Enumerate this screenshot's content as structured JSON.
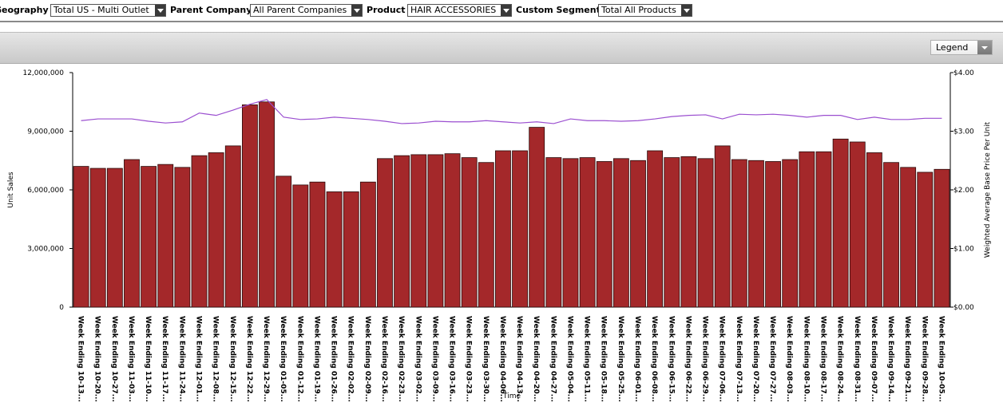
{
  "filters": [
    {
      "label": "Geography",
      "value": "Total US - Multi Outlet"
    },
    {
      "label": "Parent Company",
      "value": "All Parent Companies"
    },
    {
      "label": "Product",
      "value": "HAIR ACCESSORIES"
    },
    {
      "label": "Custom Segment",
      "value": "Total All Products"
    }
  ],
  "legend_button": "Legend",
  "chart_data": {
    "type": "bar_line",
    "ylabel": "Unit Sales",
    "y2label": "Weighted Average Base Price Per Unit",
    "xlabel": "Time",
    "categories": [
      "Week Ending 10-13...",
      "Week Ending 10-20...",
      "Week Ending 10-27...",
      "Week Ending 11-03...",
      "Week Ending 11-10...",
      "Week Ending 11-17...",
      "Week Ending 11-24...",
      "Week Ending 12-01...",
      "Week Ending 12-08...",
      "Week Ending 12-15...",
      "Week Ending 12-22...",
      "Week Ending 12-29...",
      "Week Ending 01-05...",
      "Week Ending 01-12...",
      "Week Ending 01-19...",
      "Week Ending 01-26...",
      "Week Ending 02-02...",
      "Week Ending 02-09...",
      "Week Ending 02-16...",
      "Week Ending 02-23...",
      "Week Ending 03-02...",
      "Week Ending 03-09...",
      "Week Ending 03-16...",
      "Week Ending 03-23...",
      "Week Ending 03-30...",
      "Week Ending 04-06...",
      "Week Ending 04-13...",
      "Week Ending 04-20...",
      "Week Ending 04-27...",
      "Week Ending 05-04...",
      "Week Ending 05-11...",
      "Week Ending 05-18...",
      "Week Ending 05-25...",
      "Week Ending 06-01...",
      "Week Ending 06-08...",
      "Week Ending 06-15...",
      "Week Ending 06-22...",
      "Week Ending 06-29...",
      "Week Ending 07-06...",
      "Week Ending 07-13...",
      "Week Ending 07-20...",
      "Week Ending 07-27...",
      "Week Ending 08-03...",
      "Week Ending 08-10...",
      "Week Ending 08-17...",
      "Week Ending 08-24...",
      "Week Ending 08-31...",
      "Week Ending 09-07...",
      "Week Ending 09-14...",
      "Week Ending 09-21...",
      "Week Ending 09-28...",
      "Week Ending 10-05..."
    ],
    "series": [
      {
        "type": "bar",
        "axis": "y",
        "color": "#a4282a",
        "values": [
          7200000,
          7100000,
          7100000,
          7550000,
          7200000,
          7300000,
          7150000,
          7750000,
          7900000,
          8250000,
          10350000,
          10500000,
          6700000,
          6250000,
          6400000,
          5900000,
          5900000,
          6400000,
          7600000,
          7750000,
          7800000,
          7800000,
          7850000,
          7650000,
          7400000,
          8000000,
          8000000,
          9200000,
          7650000,
          7600000,
          7650000,
          7450000,
          7600000,
          7500000,
          8000000,
          7650000,
          7700000,
          7600000,
          8250000,
          7550000,
          7500000,
          7450000,
          7550000,
          7950000,
          7950000,
          8600000,
          8450000,
          7900000,
          7400000,
          7150000,
          6900000,
          7050000
        ]
      },
      {
        "type": "line",
        "axis": "y2",
        "color": "#9b4fd0",
        "values": [
          3.18,
          3.21,
          3.21,
          3.21,
          3.17,
          3.14,
          3.16,
          3.31,
          3.27,
          3.36,
          3.46,
          3.54,
          3.24,
          3.2,
          3.21,
          3.24,
          3.22,
          3.2,
          3.17,
          3.13,
          3.14,
          3.17,
          3.16,
          3.16,
          3.18,
          3.16,
          3.14,
          3.16,
          3.13,
          3.21,
          3.18,
          3.18,
          3.17,
          3.18,
          3.21,
          3.25,
          3.27,
          3.28,
          3.21,
          3.29,
          3.28,
          3.29,
          3.27,
          3.24,
          3.27,
          3.27,
          3.2,
          3.24,
          3.2,
          3.2,
          3.22,
          3.22
        ]
      }
    ],
    "ylim": [
      0,
      12000000
    ],
    "yticks": [
      {
        "value": 0,
        "label": "0"
      },
      {
        "value": 3000000,
        "label": "3,000,000"
      },
      {
        "value": 6000000,
        "label": "6,000,000"
      },
      {
        "value": 9000000,
        "label": "9,000,000"
      },
      {
        "value": 12000000,
        "label": "12,000,000"
      }
    ],
    "y2lim": [
      0,
      4
    ],
    "y2ticks": [
      {
        "value": 0,
        "label": "$0.00"
      },
      {
        "value": 1,
        "label": "$1.00"
      },
      {
        "value": 2,
        "label": "$2.00"
      },
      {
        "value": 3,
        "label": "$3.00"
      },
      {
        "value": 4,
        "label": "$4.00"
      }
    ],
    "grid": false
  }
}
